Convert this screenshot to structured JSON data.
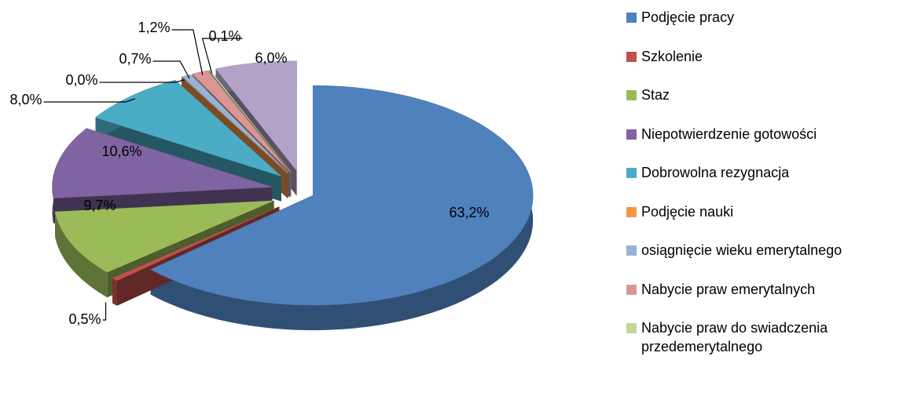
{
  "chart_data": {
    "type": "pie3d",
    "categories": [
      "Podjęcie pracy",
      "Szkolenie",
      "Staz",
      "Niepotwierdzenie gotowości",
      "Dobrowolna rezygnacja",
      "Podjęcie nauki",
      "osiągnięcie wieku emerytalnego",
      "Nabycie praw emerytalnych",
      "Nabycie praw do swiadczenia przedemerytalnego",
      null
    ],
    "values": [
      63.2,
      0.5,
      9.7,
      10.6,
      8.0,
      0.0,
      0.7,
      1.2,
      0.1,
      6.0
    ],
    "value_labels": [
      "63,2%",
      "0,5%",
      "9,7%",
      "10,6%",
      "8,0%",
      "0,0%",
      "0,7%",
      "1,2%",
      "0,1%",
      "6,0%"
    ],
    "colors": [
      "#4f81bd",
      "#c0504d",
      "#9bbb59",
      "#8064a2",
      "#4bacc6",
      "#f79646",
      "#95b3d7",
      "#d99694",
      "#c3d69b",
      "#b3a2c7"
    ],
    "legend": "right"
  }
}
